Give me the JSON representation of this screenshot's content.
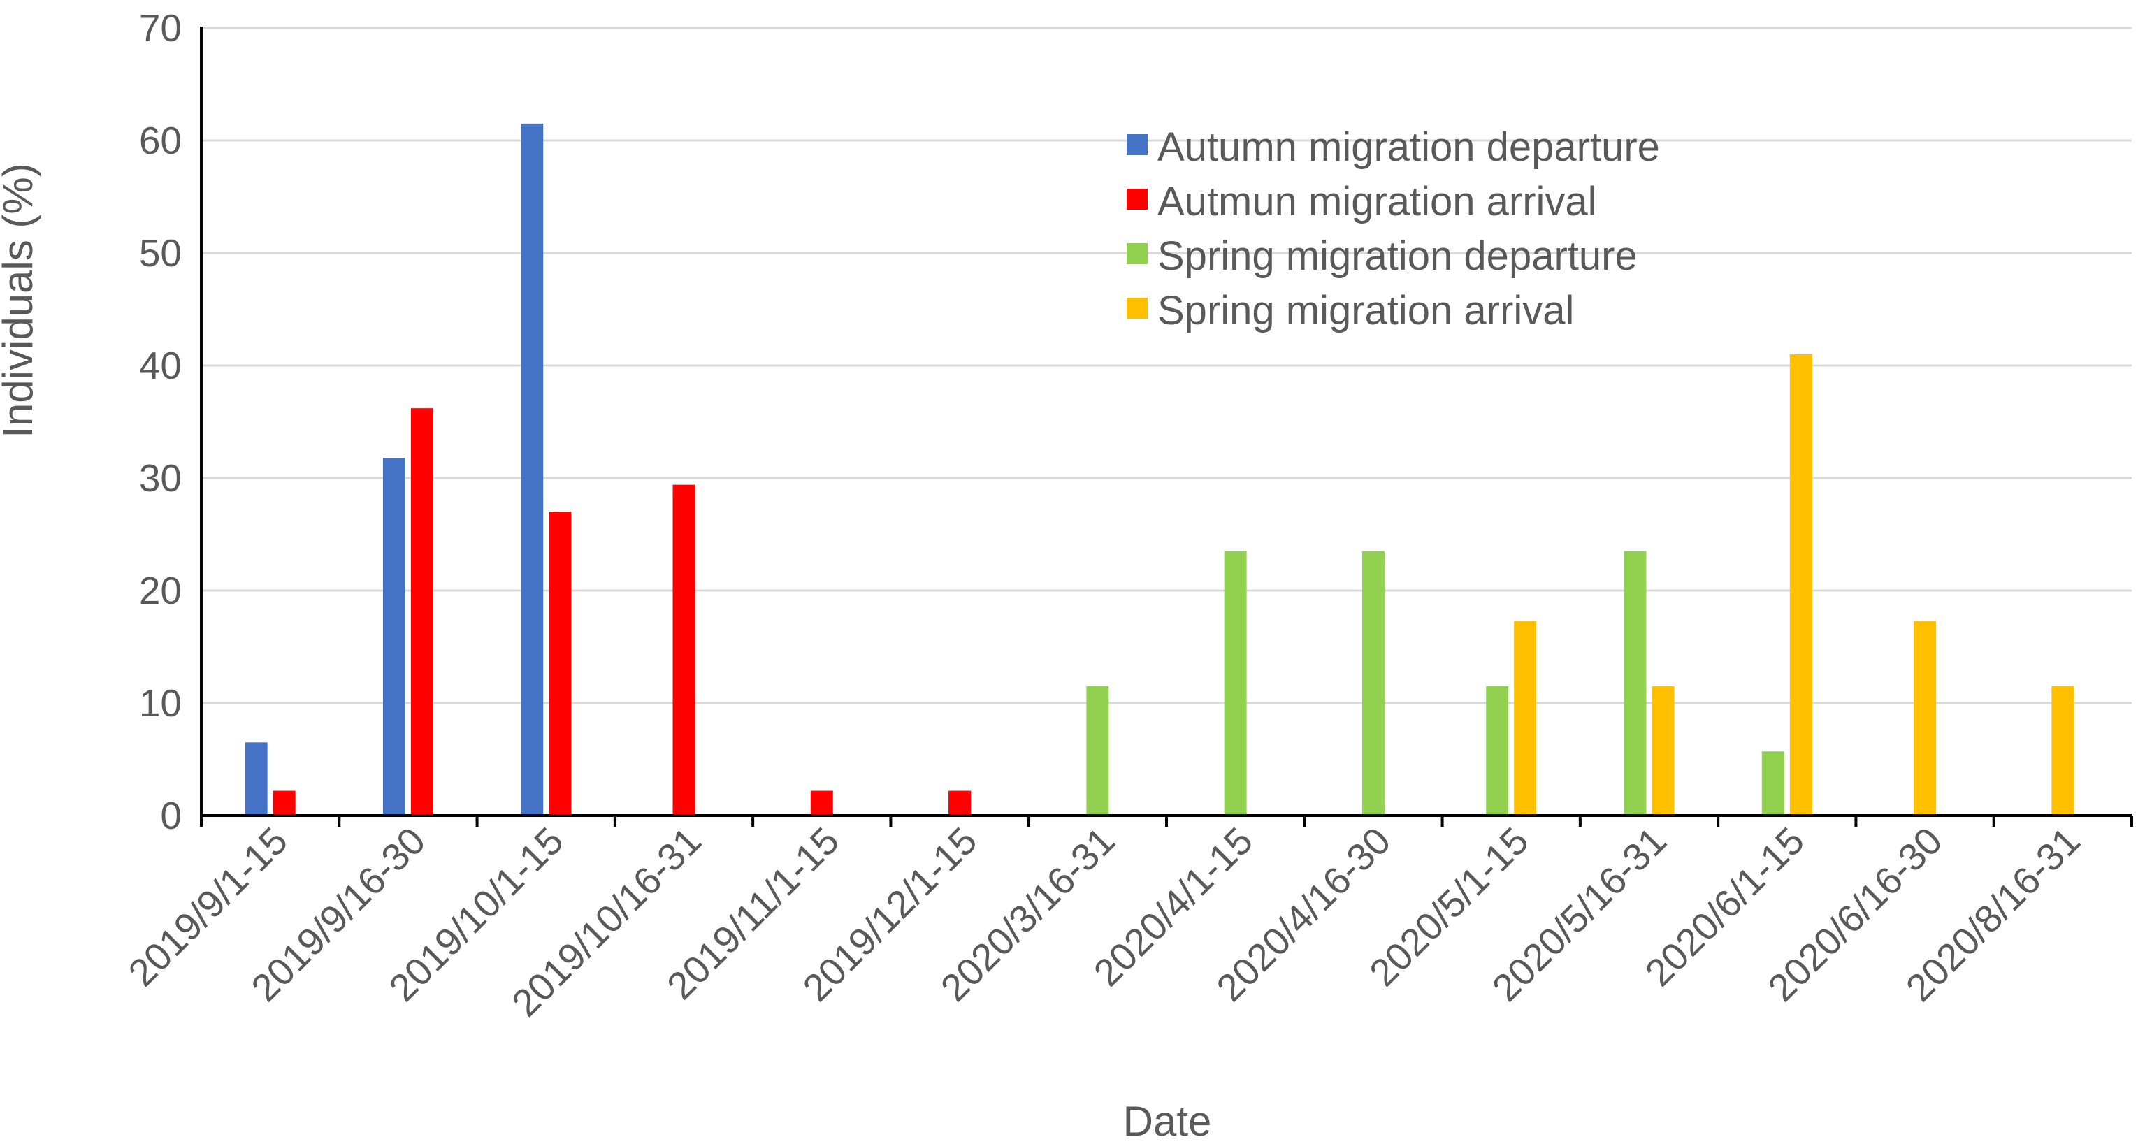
{
  "chart_data": {
    "type": "bar",
    "title": "",
    "xlabel": "Date",
    "ylabel": "Individuals (%)",
    "ylim": [
      0,
      70
    ],
    "yticks": [
      "0",
      "10",
      "20",
      "30",
      "40",
      "50",
      "60",
      "70"
    ],
    "grid": true,
    "legend_position": "top-center",
    "categories": [
      "2019/9/1-15",
      "2019/9/16-30",
      "2019/10/1-15",
      "2019/10/16-31",
      "2019/11/1-15",
      "2019/12/1-15",
      "2020/3/16-31",
      "2020/4/1-15",
      "2020/4/16-30",
      "2020/5/1-15",
      "2020/5/16-31",
      "2020/6/1-15",
      "2020/6/16-30",
      "2020/8/16-31"
    ],
    "series": [
      {
        "name": "Autumn migration departure",
        "color": "#4472c4",
        "values": [
          6.5,
          31.8,
          61.5,
          0,
          0,
          0,
          0,
          0,
          0,
          0,
          0,
          0,
          0,
          0
        ]
      },
      {
        "name": "Autmun migration arrival",
        "color": "#ff0000",
        "values": [
          2.2,
          36.2,
          27.0,
          29.4,
          2.2,
          2.2,
          0,
          0,
          0,
          0,
          0,
          0,
          0,
          0
        ]
      },
      {
        "name": "Spring migration departure",
        "color": "#92d050",
        "values": [
          0,
          0,
          0,
          0,
          0,
          0,
          11.5,
          23.5,
          23.5,
          11.5,
          23.5,
          5.7,
          0,
          0
        ]
      },
      {
        "name": "Spring migration arrival",
        "color": "#ffc000",
        "values": [
          0,
          0,
          0,
          0,
          0,
          0,
          0,
          0,
          0,
          17.3,
          11.5,
          41.0,
          17.3,
          11.5
        ]
      }
    ]
  }
}
